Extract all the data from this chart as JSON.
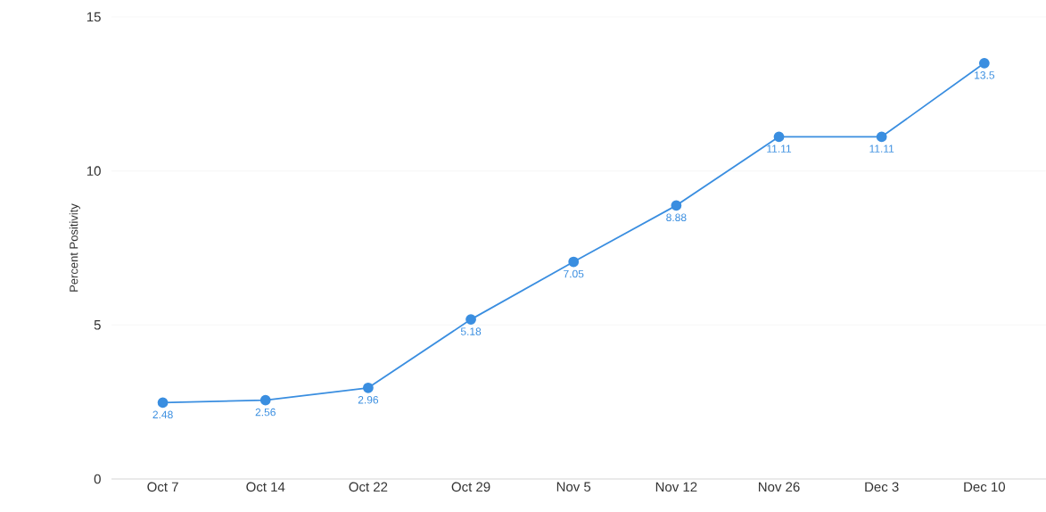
{
  "chart_data": {
    "type": "line",
    "ylabel": "Percent Positivity",
    "categories": [
      "Oct 7",
      "Oct 14",
      "Oct 22",
      "Oct 29",
      "Nov 5",
      "Nov 12",
      "Nov 26",
      "Dec 3",
      "Dec 10"
    ],
    "values": [
      2.48,
      2.56,
      2.96,
      5.18,
      7.05,
      8.88,
      11.11,
      11.11,
      13.5
    ],
    "color": "#3a8ee0",
    "marker": "circle",
    "line_style": "solid",
    "data_labels": true,
    "grid": "y",
    "ylim": [
      0,
      15
    ],
    "yticks": [
      0,
      5,
      10,
      15
    ]
  }
}
